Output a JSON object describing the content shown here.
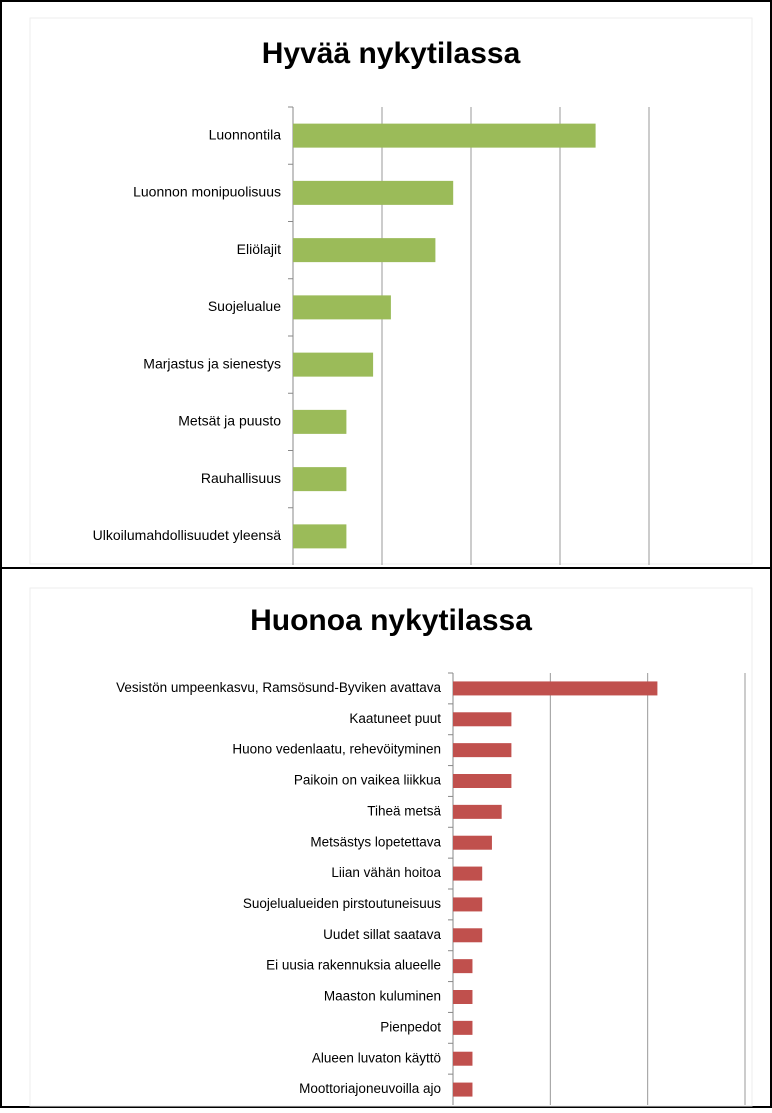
{
  "chart_data": [
    {
      "type": "barh",
      "title": "Hyvää nykytilassa",
      "categories": [
        "Luonnontila",
        "Luonnon monipuolisuus",
        "Eliölajit",
        "Suojelualue",
        "Marjastus ja sienestys",
        "Metsät ja puusto",
        "Rauhallisuus",
        "Ulkoilumahdollisuudet yleensä"
      ],
      "values": [
        17,
        9,
        8,
        5.5,
        4.5,
        3,
        3,
        3
      ],
      "color": "#9bbb59",
      "xlim": [
        0,
        25
      ],
      "xticks": [
        5,
        10,
        15,
        20
      ],
      "grid": true
    },
    {
      "type": "barh",
      "title": "Huonoa nykytilassa",
      "categories": [
        "Vesistön umpeenkasvu, Ramsösund-Byviken avattava",
        "Kaatuneet puut",
        "Huono vedenlaatu, rehevöityminen",
        "Paikoin on vaikea liikkua",
        "Tiheä metsä",
        "Metsästys lopetettava",
        "Liian vähän hoitoa",
        "Suojelualueiden pirstoutuneisuus",
        "Uudet sillat saatava",
        "Ei uusia rakennuksia alueelle",
        "Maaston kuluminen",
        "Pienpedot",
        "Alueen luvaton käyttö",
        "Moottoriajoneuvoilla ajo"
      ],
      "values": [
        21,
        6,
        6,
        6,
        5,
        4,
        3,
        3,
        3,
        2,
        2,
        2,
        2,
        2
      ],
      "color": "#c0504d",
      "xlim": [
        0,
        30
      ],
      "xticks": [
        10,
        20,
        30
      ],
      "grid": true
    }
  ]
}
